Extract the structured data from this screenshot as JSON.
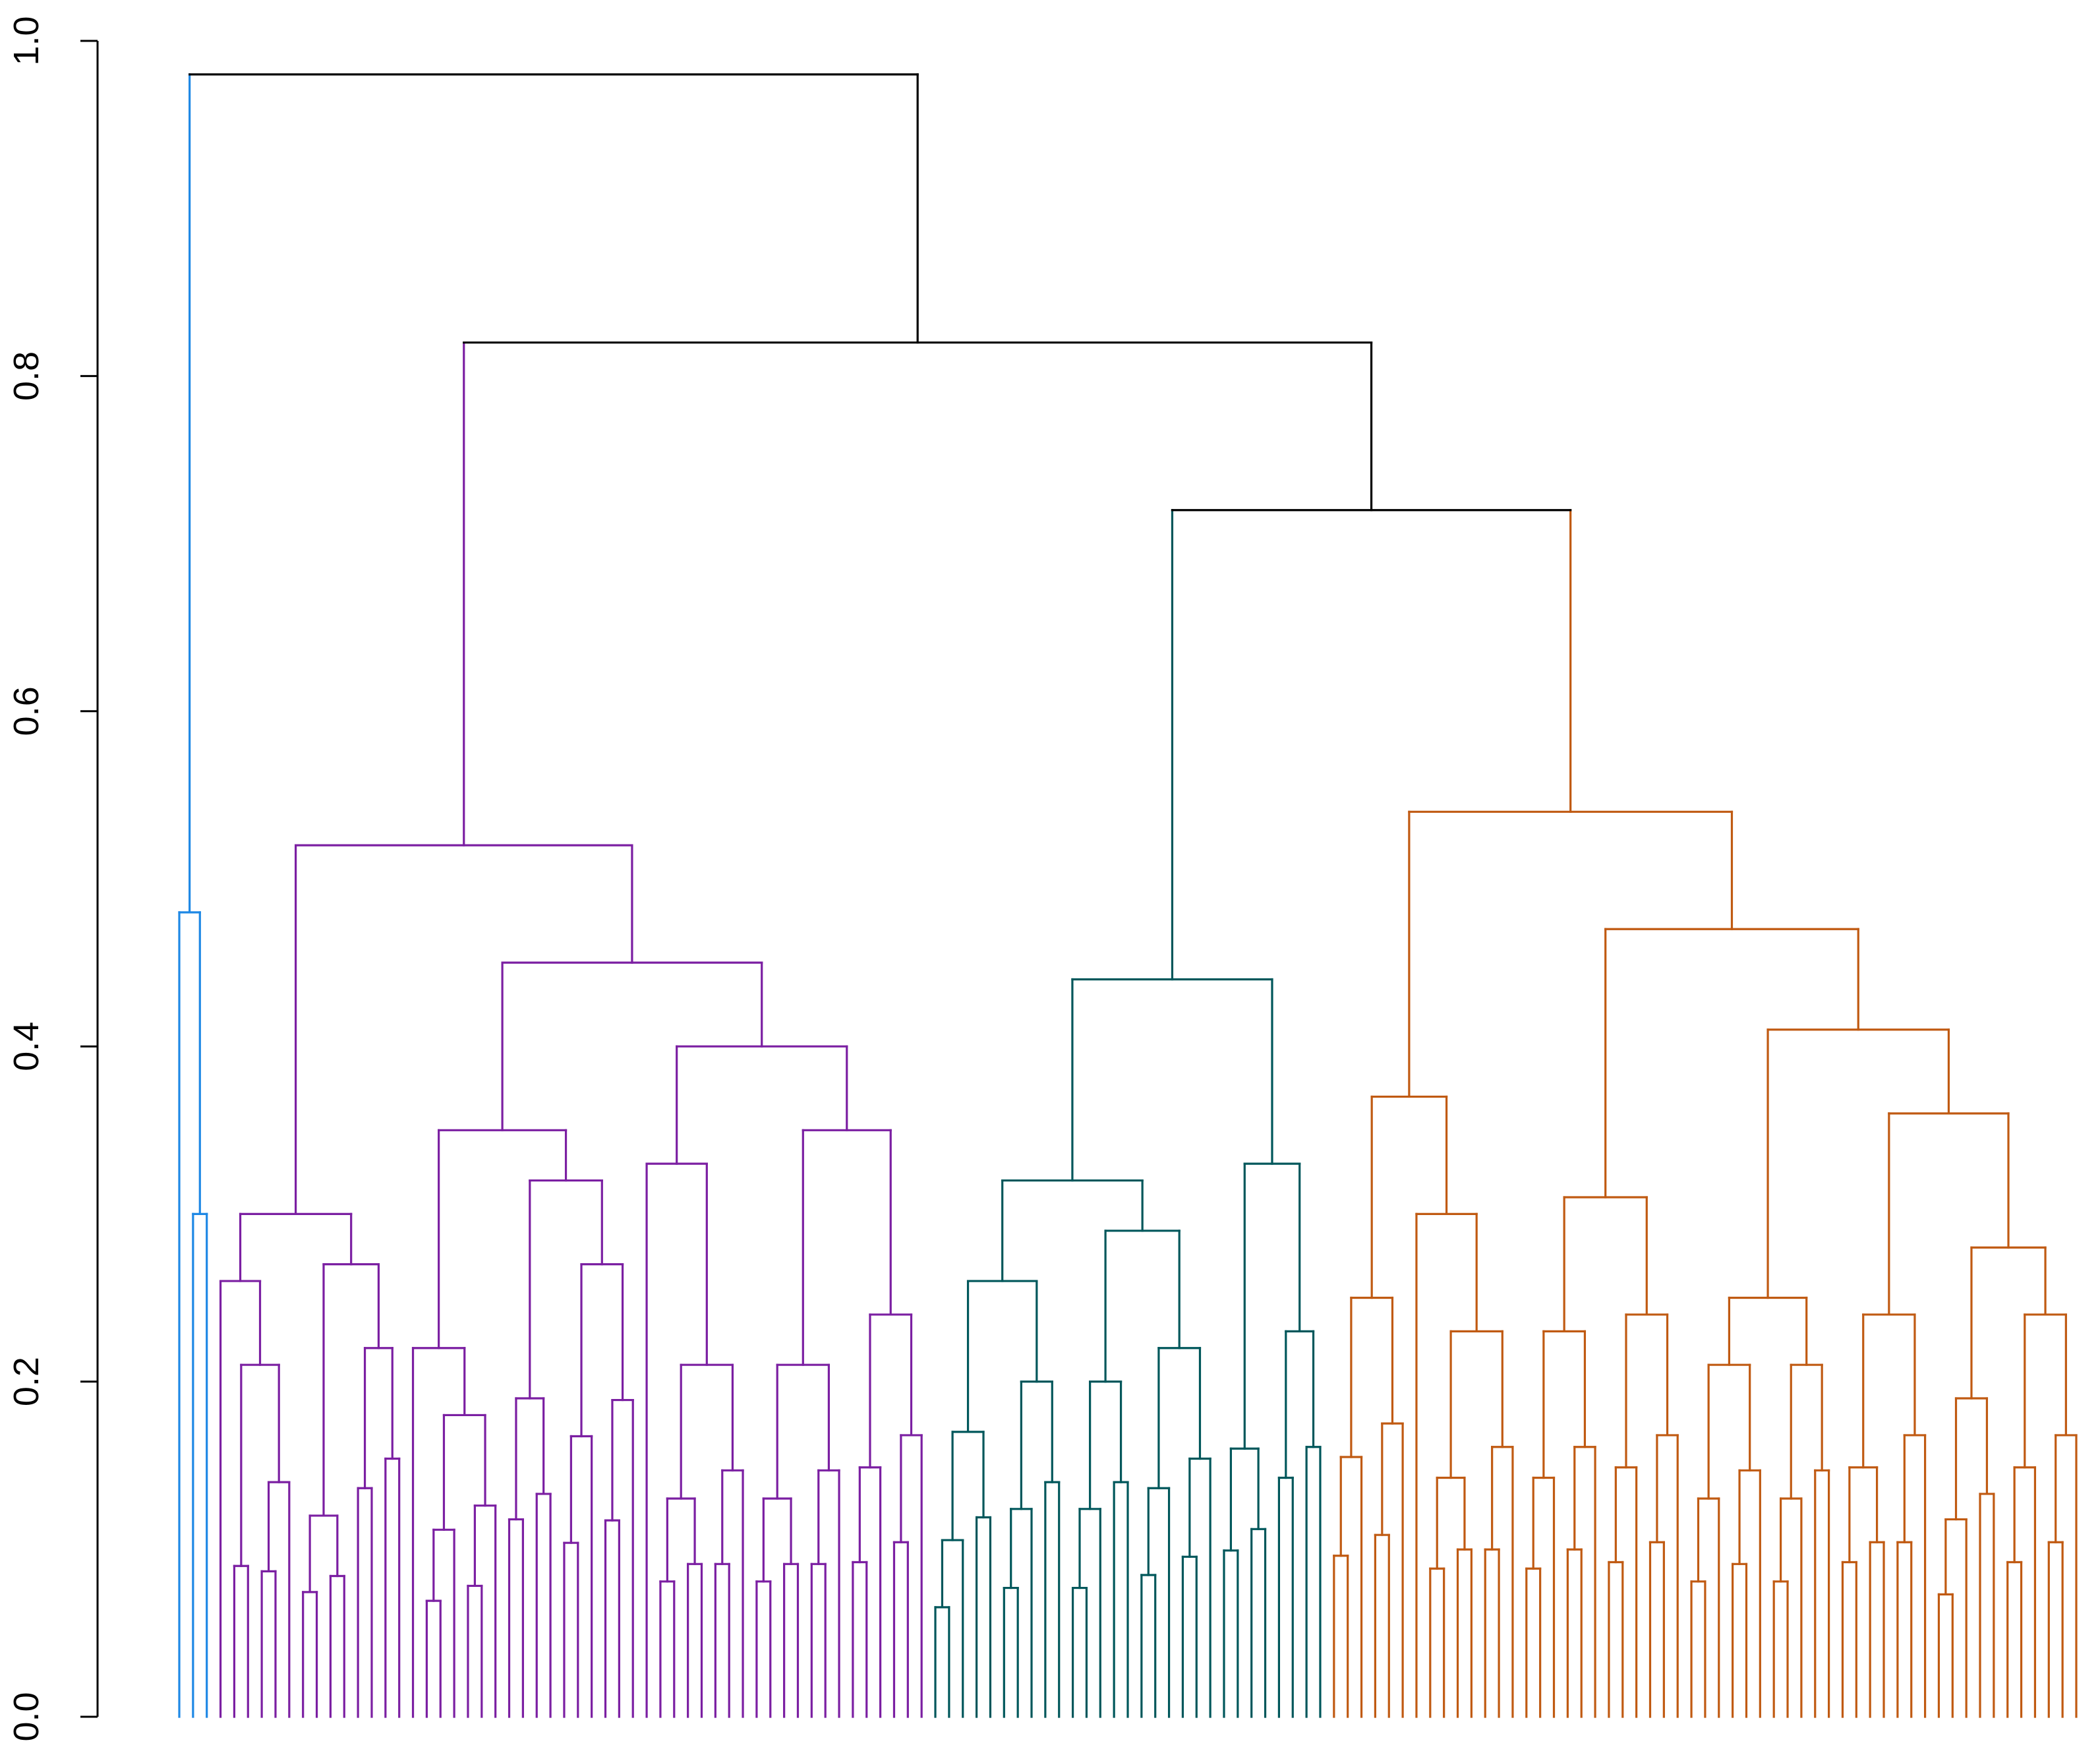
{
  "chart_data": {
    "type": "dendrogram",
    "title": "",
    "xlabel": "",
    "ylabel": "",
    "ylim": [
      0,
      1
    ],
    "y_ticks": [
      "0.0",
      "0.2",
      "0.4",
      "0.6",
      "0.8",
      "1.0"
    ],
    "leaf_count": 148,
    "clusters": [
      {
        "color": "#1e88e5",
        "leaves": 3,
        "merge_height": 0.48
      },
      {
        "color": "#7b1fa2",
        "leaves": 53,
        "merge_height": 0.52
      },
      {
        "color": "#00575b",
        "leaves": 32,
        "merge_height": 0.44
      },
      {
        "color": "#c05a12",
        "leaves": 60,
        "merge_height": 0.54
      }
    ],
    "merges": [
      {
        "left": "teal cluster",
        "right": "orange cluster",
        "height": 0.72
      },
      {
        "left": "purple cluster",
        "right": "teal + orange",
        "height": 0.82
      },
      {
        "left": "blue cluster",
        "right": "all others",
        "height": 0.98
      }
    ],
    "grid": false
  }
}
